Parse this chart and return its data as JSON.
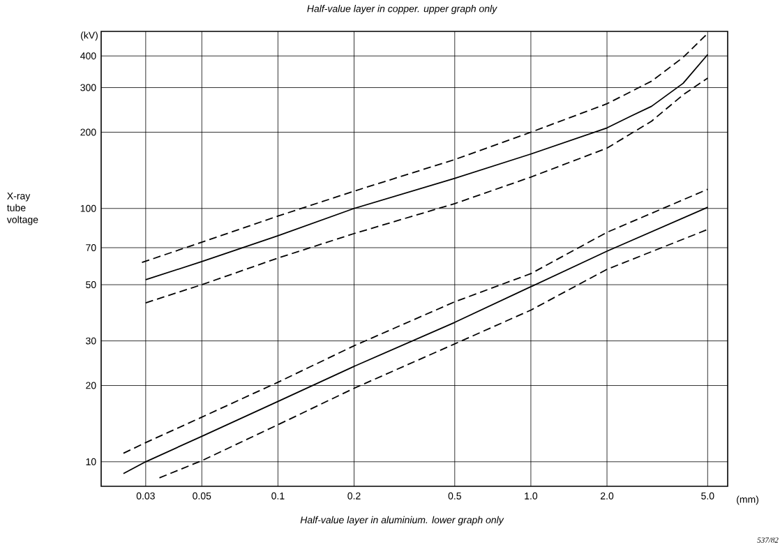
{
  "chart_data": {
    "type": "line",
    "title": "Half-value layer in copper. upper graph only",
    "xlabel": "Half-value layer in aluminium. lower graph only",
    "ylabel": "X-ray tube voltage",
    "annotations": [
      "(kV)",
      "(mm)",
      "537/82"
    ],
    "log": "xy",
    "grid": true,
    "marker": "none",
    "xlim": [
      0.02,
      6.0
    ],
    "ylim": [
      8,
      500
    ],
    "xticks": [
      0.03,
      0.05,
      0.1,
      0.2,
      0.5,
      {
        "value": 1.0,
        "label": "1.0"
      },
      {
        "value": 2.0,
        "label": "2.0"
      },
      {
        "value": 5.0,
        "label": "5.0"
      }
    ],
    "yticks": [
      10,
      20,
      30,
      50,
      70,
      100,
      200,
      300,
      400
    ],
    "series": [
      {
        "color": "#000000",
        "line_style": "solid",
        "x": [
          0.03,
          0.05,
          0.1,
          0.2,
          0.5,
          1.0,
          2.0,
          2.5,
          3.0,
          4.0,
          5.0
        ],
        "values": [
          52.3,
          61.7,
          78,
          100,
          131.5,
          164,
          208,
          232,
          253,
          312,
          405
        ]
      },
      {
        "color": "#000000",
        "line_style": "dashed",
        "x": [
          0.029,
          0.05,
          0.1,
          0.2,
          0.5,
          1.0,
          2.0,
          3.0,
          4.0,
          5.0
        ],
        "values": [
          61.2,
          73.6,
          93.3,
          117,
          156,
          200,
          259,
          318,
          395,
          491
        ]
      },
      {
        "color": "#000000",
        "line_style": "dashed",
        "x": [
          0.03,
          0.05,
          0.1,
          0.2,
          0.5,
          1.0,
          2.0,
          3.0,
          4.0,
          5.0
        ],
        "values": [
          42.4,
          50,
          63.7,
          79.6,
          104.5,
          133,
          173,
          221,
          281,
          327
        ]
      },
      {
        "color": "#000000",
        "line_style": "solid",
        "x": [
          0.0245,
          0.03,
          0.05,
          0.1,
          0.2,
          0.5,
          1.0,
          2.0,
          5.0
        ],
        "values": [
          8.98,
          10,
          12.6,
          17.3,
          23.8,
          35.5,
          49.1,
          67.8,
          101
        ]
      },
      {
        "color": "#000000",
        "line_style": "dashed",
        "x": [
          0.0245,
          0.03,
          0.05,
          0.1,
          0.2,
          0.5,
          1.0,
          2.0,
          5.0
        ],
        "values": [
          10.8,
          11.9,
          15.0,
          20.6,
          28.7,
          42.8,
          55.3,
          80.5,
          119
        ]
      },
      {
        "color": "#000000",
        "line_style": "dashed",
        "x": [
          0.034,
          0.05,
          0.1,
          0.2,
          0.5,
          1.0,
          2.0,
          5.0
        ],
        "values": [
          8.64,
          10.1,
          14.0,
          19.5,
          29.2,
          39.7,
          57.5,
          82.6
        ]
      }
    ]
  }
}
